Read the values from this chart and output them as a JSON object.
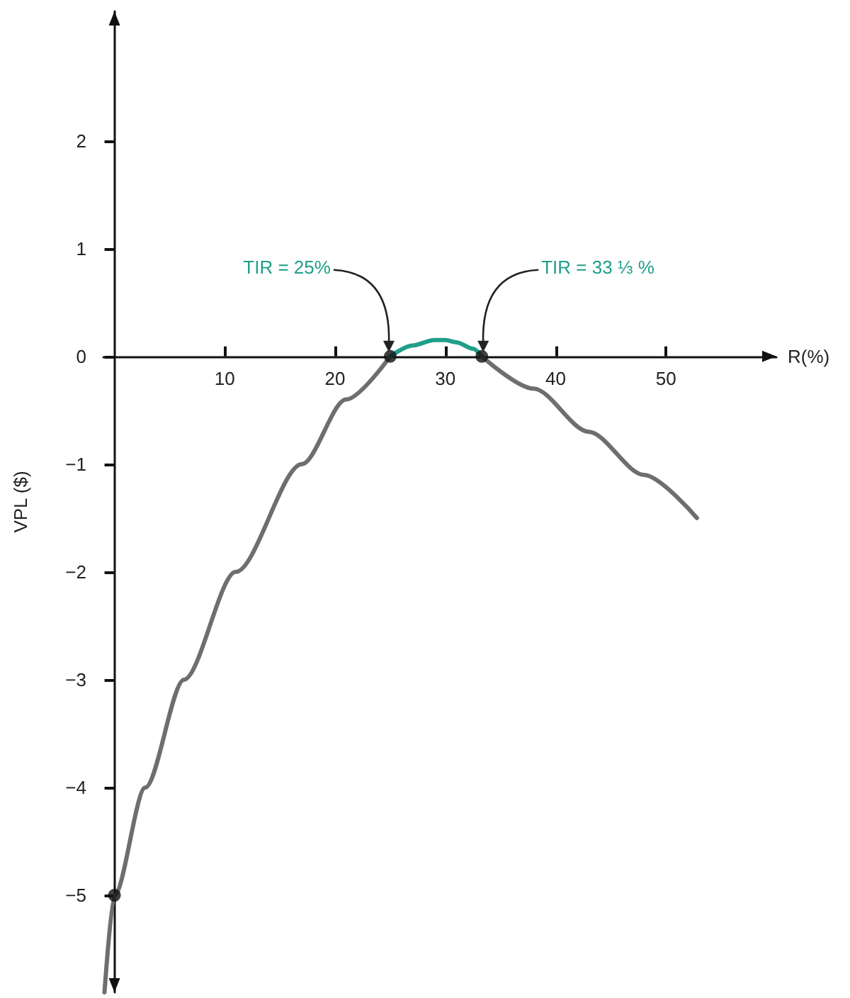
{
  "chart_data": {
    "type": "line",
    "xlabel": "R(%)",
    "ylabel": "VPL ($)",
    "xlim": [
      -1,
      60
    ],
    "ylim": [
      -5.9,
      3.2
    ],
    "xticks": [
      10,
      20,
      30,
      40,
      50
    ],
    "yticks": [
      {
        "value": -5,
        "label": "−5"
      },
      {
        "value": -4,
        "label": "−4"
      },
      {
        "value": -3,
        "label": "−3"
      },
      {
        "value": -2,
        "label": "−2"
      },
      {
        "value": -1,
        "label": "−1"
      },
      0,
      1,
      2
    ],
    "grid": false,
    "line_style": "solid",
    "series": [
      {
        "color": "#6e6e6e",
        "marker": "none",
        "x": [
          -0.9,
          0,
          2.8,
          6.3,
          11,
          17,
          21,
          25
        ],
        "values": [
          -5.9,
          -5,
          -4,
          -3,
          -2,
          -1,
          -0.4,
          0
        ]
      },
      {
        "color": "#1f9e89",
        "marker": "none",
        "x": [
          25,
          27,
          29,
          30,
          31,
          32.5,
          33.3
        ],
        "values": [
          0,
          0.1,
          0.15,
          0.15,
          0.13,
          0.07,
          0
        ]
      },
      {
        "color": "#6e6e6e",
        "marker": "none",
        "x": [
          33.3,
          38,
          43,
          48,
          52.8
        ],
        "values": [
          0,
          -0.3,
          -0.7,
          -1.1,
          -1.5
        ]
      },
      {
        "type": "scatter",
        "color": "#111111",
        "marker": "circle",
        "x": [
          0,
          25,
          33.3
        ],
        "values": [
          -5,
          0,
          0
        ]
      }
    ],
    "annotations": [
      {
        "text": "TIR = 25%",
        "x": 25,
        "y": 0
      },
      {
        "text": "TIR = 33 ⅓ %",
        "x": 33.3,
        "y": 0
      }
    ]
  }
}
